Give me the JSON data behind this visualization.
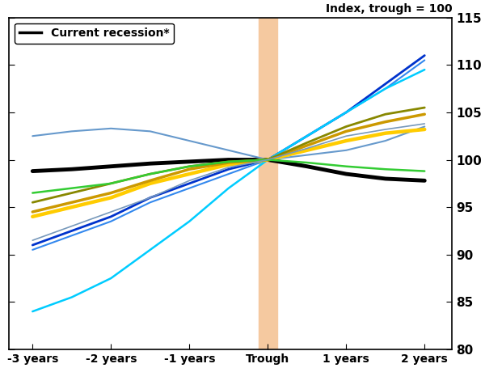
{
  "title_right": "Index, trough = 100",
  "xlabel_ticks": [
    "-3 years",
    "-2 years",
    "-1 years",
    "Trough",
    "1 years",
    "2 years"
  ],
  "x_positions": [
    -3,
    -2,
    -1,
    0,
    1,
    2
  ],
  "ylim": [
    80,
    115
  ],
  "yticks": [
    80,
    85,
    90,
    95,
    100,
    105,
    110,
    115
  ],
  "trough_band": [
    -0.12,
    0.12
  ],
  "trough_color": "#f5c9a0",
  "legend_label": "Current recession*",
  "lines": [
    {
      "color": "#000000",
      "linewidth": 3.5,
      "x": [
        -3,
        -2.5,
        -2,
        -1.5,
        -1,
        -0.5,
        0,
        0.5,
        1,
        1.5,
        2
      ],
      "y": [
        98.8,
        99.0,
        99.3,
        99.6,
        99.8,
        100.0,
        100.0,
        99.3,
        98.5,
        98.0,
        97.8
      ]
    },
    {
      "color": "#6699cc",
      "linewidth": 1.5,
      "x": [
        -3,
        -2.5,
        -2,
        -1.5,
        -1,
        -0.5,
        0,
        0.5,
        1,
        1.5,
        2
      ],
      "y": [
        102.5,
        103.0,
        103.3,
        103.0,
        102.0,
        101.0,
        100.0,
        100.5,
        101.0,
        102.0,
        103.5
      ]
    },
    {
      "color": "#0033cc",
      "linewidth": 2.0,
      "x": [
        -3,
        -2.5,
        -2,
        -1.5,
        -1,
        -0.5,
        0,
        0.5,
        1,
        1.5,
        2
      ],
      "y": [
        91.0,
        92.5,
        94.0,
        96.0,
        97.5,
        99.0,
        100.0,
        102.5,
        105.0,
        108.0,
        111.0
      ]
    },
    {
      "color": "#3388ee",
      "linewidth": 1.5,
      "x": [
        -3,
        -2.5,
        -2,
        -1.5,
        -1,
        -0.5,
        0,
        0.5,
        1,
        1.5,
        2
      ],
      "y": [
        90.5,
        92.0,
        93.5,
        95.5,
        97.0,
        98.5,
        100.0,
        102.5,
        105.0,
        107.5,
        110.5
      ]
    },
    {
      "color": "#00ccff",
      "linewidth": 1.8,
      "x": [
        -3,
        -2.5,
        -2,
        -1.5,
        -1,
        -0.5,
        0,
        0.5,
        1,
        1.5,
        2
      ],
      "y": [
        84.0,
        85.5,
        87.5,
        90.5,
        93.5,
        97.0,
        100.0,
        102.5,
        105.0,
        107.5,
        109.5
      ]
    },
    {
      "color": "#ffcc00",
      "linewidth": 3.2,
      "x": [
        -3,
        -2.5,
        -2,
        -1.5,
        -1,
        -0.5,
        0,
        0.5,
        1,
        1.5,
        2
      ],
      "y": [
        94.0,
        95.0,
        96.0,
        97.5,
        98.5,
        99.5,
        100.0,
        101.0,
        102.0,
        102.8,
        103.2
      ]
    },
    {
      "color": "#cc9900",
      "linewidth": 2.5,
      "x": [
        -3,
        -2.5,
        -2,
        -1.5,
        -1,
        -0.5,
        0,
        0.5,
        1,
        1.5,
        2
      ],
      "y": [
        94.5,
        95.5,
        96.5,
        97.8,
        99.0,
        99.7,
        100.0,
        101.5,
        103.0,
        104.0,
        104.8
      ]
    },
    {
      "color": "#888800",
      "linewidth": 2.0,
      "x": [
        -3,
        -2.5,
        -2,
        -1.5,
        -1,
        -0.5,
        0,
        0.5,
        1,
        1.5,
        2
      ],
      "y": [
        95.5,
        96.5,
        97.5,
        98.5,
        99.3,
        99.8,
        100.0,
        101.8,
        103.5,
        104.8,
        105.5
      ]
    },
    {
      "color": "#33cc33",
      "linewidth": 1.8,
      "x": [
        -3,
        -2.5,
        -2,
        -1.5,
        -1,
        -0.5,
        0,
        0.5,
        1,
        1.5,
        2
      ],
      "y": [
        96.5,
        97.0,
        97.5,
        98.5,
        99.3,
        99.8,
        100.0,
        99.7,
        99.3,
        99.0,
        98.8
      ]
    },
    {
      "color": "#7799bb",
      "linewidth": 1.2,
      "x": [
        -3,
        -2.5,
        -2,
        -1.5,
        -1,
        -0.5,
        0,
        0.5,
        1,
        1.5,
        2
      ],
      "y": [
        91.5,
        93.0,
        94.5,
        96.0,
        97.8,
        99.2,
        100.0,
        101.2,
        102.5,
        103.2,
        103.8
      ]
    }
  ],
  "bg_color": "#ffffff",
  "spine_color": "#000000",
  "xlim": [
    -3.3,
    2.35
  ]
}
